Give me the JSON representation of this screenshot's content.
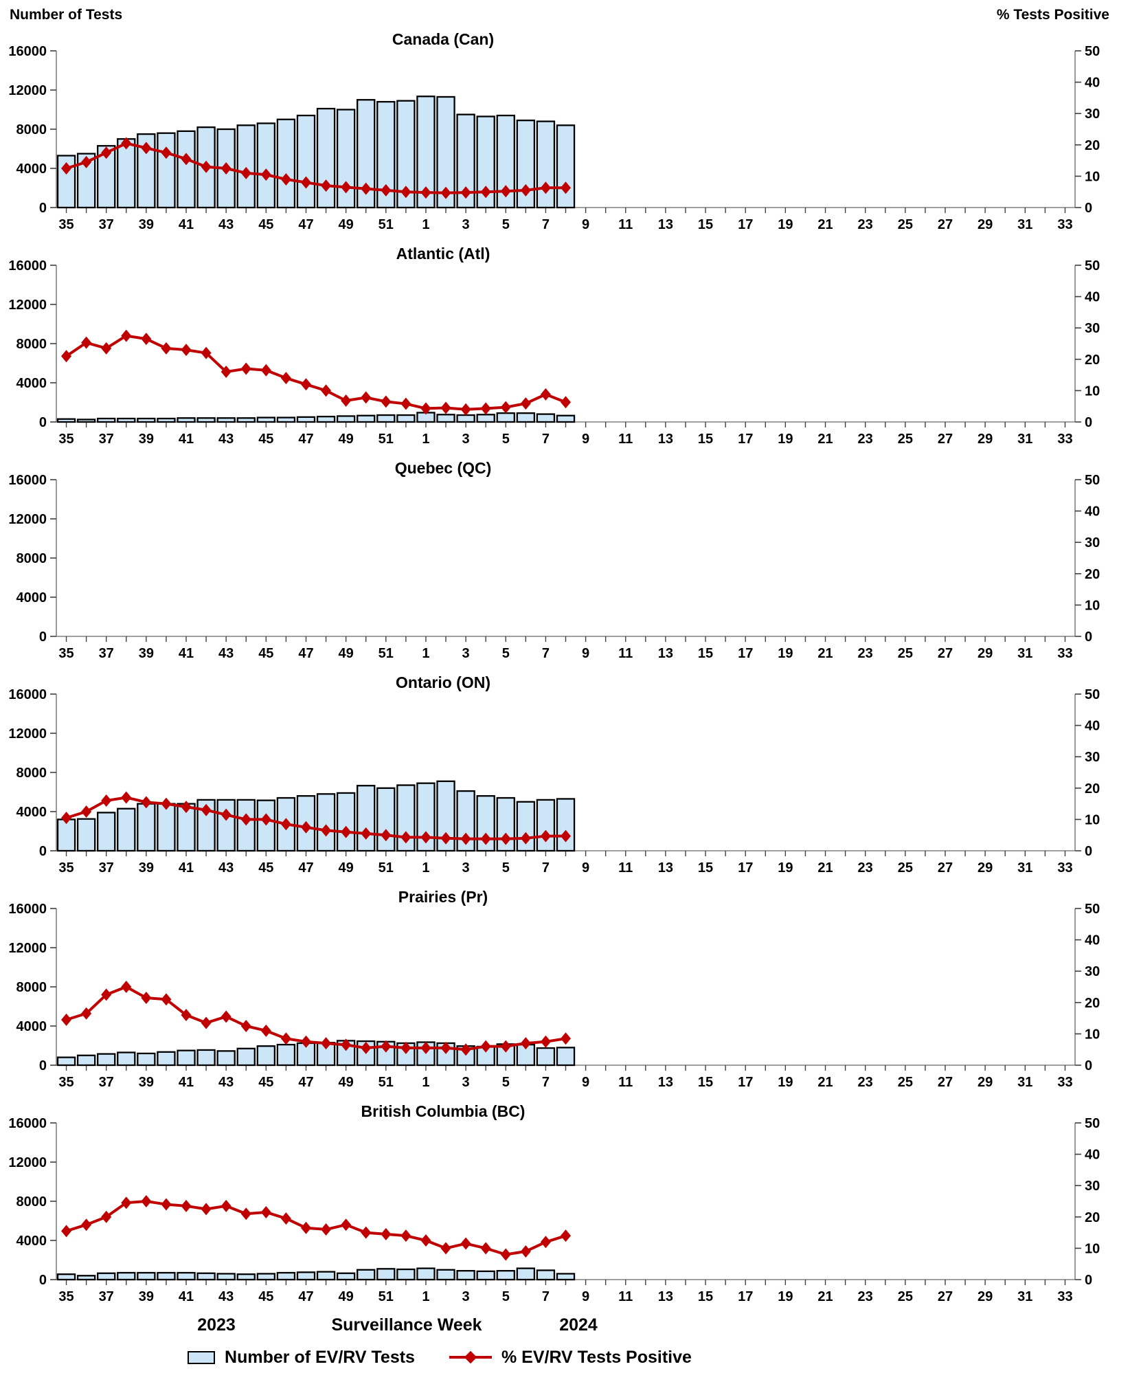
{
  "header": {
    "left_axis_title": "Number of Tests",
    "right_axis_title": "% Tests Positive"
  },
  "footer": {
    "year_left": "2023",
    "xaxis_title": "Surveillance Week",
    "year_right": "2024"
  },
  "legend": {
    "bars_label": "Number of EV/RV Tests",
    "line_label": "% EV/RV Tests Positive"
  },
  "colors": {
    "bar_fill": "#CCE6F7",
    "bar_border": "#000000",
    "line": "#C00000",
    "axis_line": "#808080",
    "tick": "#404040",
    "text": "#000000"
  },
  "axes": {
    "left_ticks": [
      0,
      4000,
      8000,
      12000,
      16000
    ],
    "left_max": 16000,
    "right_ticks": [
      0,
      10,
      20,
      30,
      40,
      50
    ],
    "right_max": 50,
    "weeks_total": 51,
    "week_tick_labels": [
      "35",
      "37",
      "39",
      "41",
      "43",
      "45",
      "47",
      "49",
      "51",
      "1",
      "3",
      "5",
      "7",
      "9",
      "11",
      "13",
      "15",
      "17",
      "19",
      "21",
      "23",
      "25",
      "27",
      "29",
      "31",
      "33"
    ],
    "data_weeks": [
      35,
      36,
      37,
      38,
      39,
      40,
      41,
      42,
      43,
      44,
      45,
      46,
      47,
      48,
      49,
      50,
      51,
      52,
      1,
      2,
      3,
      4,
      5,
      6,
      7,
      8
    ]
  },
  "chart_data": [
    {
      "type": "bar",
      "region": "Canada",
      "title": "Canada (Can)",
      "xlabel": "Surveillance Week",
      "ylabel_left": "Number of Tests",
      "ylabel_right": "% Tests Positive",
      "ylim_left": [
        0,
        16000
      ],
      "ylim_right": [
        0,
        50
      ],
      "categories": [
        35,
        36,
        37,
        38,
        39,
        40,
        41,
        42,
        43,
        44,
        45,
        46,
        47,
        48,
        49,
        50,
        51,
        52,
        1,
        2,
        3,
        4,
        5,
        6,
        7,
        8
      ],
      "series": [
        {
          "name": "Number of EV/RV Tests",
          "axis": "left",
          "values": [
            5300,
            5500,
            6300,
            7000,
            7500,
            7600,
            7800,
            8200,
            8000,
            8400,
            8600,
            9000,
            9400,
            10100,
            10000,
            11000,
            10800,
            10900,
            11350,
            11300,
            9500,
            9300,
            9400,
            8900,
            8800,
            8400
          ]
        },
        {
          "name": "% EV/RV Tests Positive",
          "axis": "right",
          "values": [
            12.5,
            14.5,
            17.5,
            20.5,
            19,
            17.5,
            15.5,
            13,
            12.5,
            11,
            10.5,
            9,
            8,
            7,
            6.5,
            6,
            5.5,
            5,
            4.8,
            4.7,
            4.8,
            5,
            5.2,
            5.5,
            6.3,
            6.3
          ]
        }
      ]
    },
    {
      "type": "bar",
      "region": "Atlantic",
      "title": "Atlantic (Atl)",
      "xlabel": "Surveillance Week",
      "ylabel_left": "Number of Tests",
      "ylabel_right": "% Tests Positive",
      "ylim_left": [
        0,
        16000
      ],
      "ylim_right": [
        0,
        50
      ],
      "categories": [
        35,
        36,
        37,
        38,
        39,
        40,
        41,
        42,
        43,
        44,
        45,
        46,
        47,
        48,
        49,
        50,
        51,
        52,
        1,
        2,
        3,
        4,
        5,
        6,
        7,
        8
      ],
      "series": [
        {
          "name": "Number of EV/RV Tests",
          "axis": "left",
          "values": [
            300,
            250,
            350,
            350,
            350,
            350,
            400,
            400,
            400,
            400,
            450,
            450,
            500,
            550,
            600,
            650,
            700,
            700,
            950,
            750,
            700,
            750,
            900,
            900,
            800,
            650
          ]
        },
        {
          "name": "% EV/RV Tests Positive",
          "axis": "right",
          "values": [
            21,
            25.3,
            23.5,
            27.5,
            26.5,
            23.5,
            23,
            22,
            16,
            17,
            16.5,
            14,
            12,
            10,
            6.8,
            7.8,
            6.5,
            5.8,
            4.3,
            4.5,
            4,
            4.3,
            4.7,
            5.9,
            8.8,
            6.3
          ]
        }
      ]
    },
    {
      "type": "bar",
      "region": "Quebec",
      "title": "Quebec (QC)",
      "xlabel": "Surveillance Week",
      "ylabel_left": "Number of Tests",
      "ylabel_right": "% Tests Positive",
      "ylim_left": [
        0,
        16000
      ],
      "ylim_right": [
        0,
        50
      ],
      "categories": [],
      "series": [
        {
          "name": "Number of EV/RV Tests",
          "axis": "left",
          "values": []
        },
        {
          "name": "% EV/RV Tests Positive",
          "axis": "right",
          "values": []
        }
      ]
    },
    {
      "type": "bar",
      "region": "Ontario",
      "title": "Ontario (ON)",
      "xlabel": "Surveillance Week",
      "ylabel_left": "Number of Tests",
      "ylabel_right": "% Tests Positive",
      "ylim_left": [
        0,
        16000
      ],
      "ylim_right": [
        0,
        50
      ],
      "categories": [
        35,
        36,
        37,
        38,
        39,
        40,
        41,
        42,
        43,
        44,
        45,
        46,
        47,
        48,
        49,
        50,
        51,
        52,
        1,
        2,
        3,
        4,
        5,
        6,
        7,
        8
      ],
      "series": [
        {
          "name": "Number of EV/RV Tests",
          "axis": "left",
          "values": [
            3200,
            3250,
            3900,
            4300,
            4800,
            4800,
            4800,
            5200,
            5200,
            5200,
            5150,
            5400,
            5600,
            5800,
            5900,
            6650,
            6400,
            6700,
            6900,
            7100,
            6100,
            5600,
            5400,
            5000,
            5200,
            5300
          ]
        },
        {
          "name": "% EV/RV Tests Positive",
          "axis": "right",
          "values": [
            10.5,
            12.5,
            16,
            17,
            15.5,
            15,
            14,
            13,
            11.5,
            10,
            10,
            8.5,
            7.5,
            6.5,
            6,
            5.5,
            5,
            4.3,
            4.3,
            4,
            3.8,
            3.8,
            3.8,
            4,
            4.7,
            4.7
          ]
        }
      ]
    },
    {
      "type": "bar",
      "region": "Prairies",
      "title": "Prairies (Pr)",
      "xlabel": "Surveillance Week",
      "ylabel_left": "Number of Tests",
      "ylabel_right": "% Tests Positive",
      "ylim_left": [
        0,
        16000
      ],
      "ylim_right": [
        0,
        50
      ],
      "categories": [
        35,
        36,
        37,
        38,
        39,
        40,
        41,
        42,
        43,
        44,
        45,
        46,
        47,
        48,
        49,
        50,
        51,
        52,
        1,
        2,
        3,
        4,
        5,
        6,
        7,
        8
      ],
      "series": [
        {
          "name": "Number of EV/RV Tests",
          "axis": "left",
          "values": [
            800,
            1000,
            1150,
            1300,
            1200,
            1350,
            1500,
            1550,
            1450,
            1700,
            1950,
            2100,
            2250,
            2300,
            2500,
            2450,
            2400,
            2250,
            2350,
            2250,
            1950,
            1900,
            2150,
            2100,
            1750,
            1800
          ]
        },
        {
          "name": "% EV/RV Tests Positive",
          "axis": "right",
          "values": [
            14.5,
            16.5,
            22.5,
            25,
            21.5,
            21,
            16,
            13.5,
            15.5,
            12.5,
            11,
            8.5,
            7.5,
            7,
            6.5,
            5.5,
            6,
            5.5,
            5.5,
            5.5,
            5,
            6,
            6,
            7,
            7.5,
            8.5
          ]
        }
      ]
    },
    {
      "type": "bar",
      "region": "British Columbia",
      "title": "British Columbia (BC)",
      "xlabel": "Surveillance Week",
      "ylabel_left": "Number of Tests",
      "ylabel_right": "% Tests Positive",
      "ylim_left": [
        0,
        16000
      ],
      "ylim_right": [
        0,
        50
      ],
      "categories": [
        35,
        36,
        37,
        38,
        39,
        40,
        41,
        42,
        43,
        44,
        45,
        46,
        47,
        48,
        49,
        50,
        51,
        52,
        1,
        2,
        3,
        4,
        5,
        6,
        7,
        8
      ],
      "series": [
        {
          "name": "Number of EV/RV Tests",
          "axis": "left",
          "values": [
            550,
            400,
            650,
            700,
            700,
            700,
            700,
            650,
            600,
            550,
            600,
            700,
            750,
            800,
            650,
            1000,
            1100,
            1050,
            1150,
            1000,
            900,
            850,
            900,
            1150,
            950,
            600
          ]
        },
        {
          "name": "% EV/RV Tests Positive",
          "axis": "right",
          "values": [
            15.5,
            17.5,
            20,
            24.5,
            25,
            24,
            23.5,
            22.5,
            23.5,
            21,
            21.5,
            19.5,
            16.5,
            16,
            17.5,
            15,
            14.5,
            14,
            12.5,
            10,
            11.5,
            10,
            8,
            9,
            12,
            14
          ]
        }
      ]
    }
  ]
}
